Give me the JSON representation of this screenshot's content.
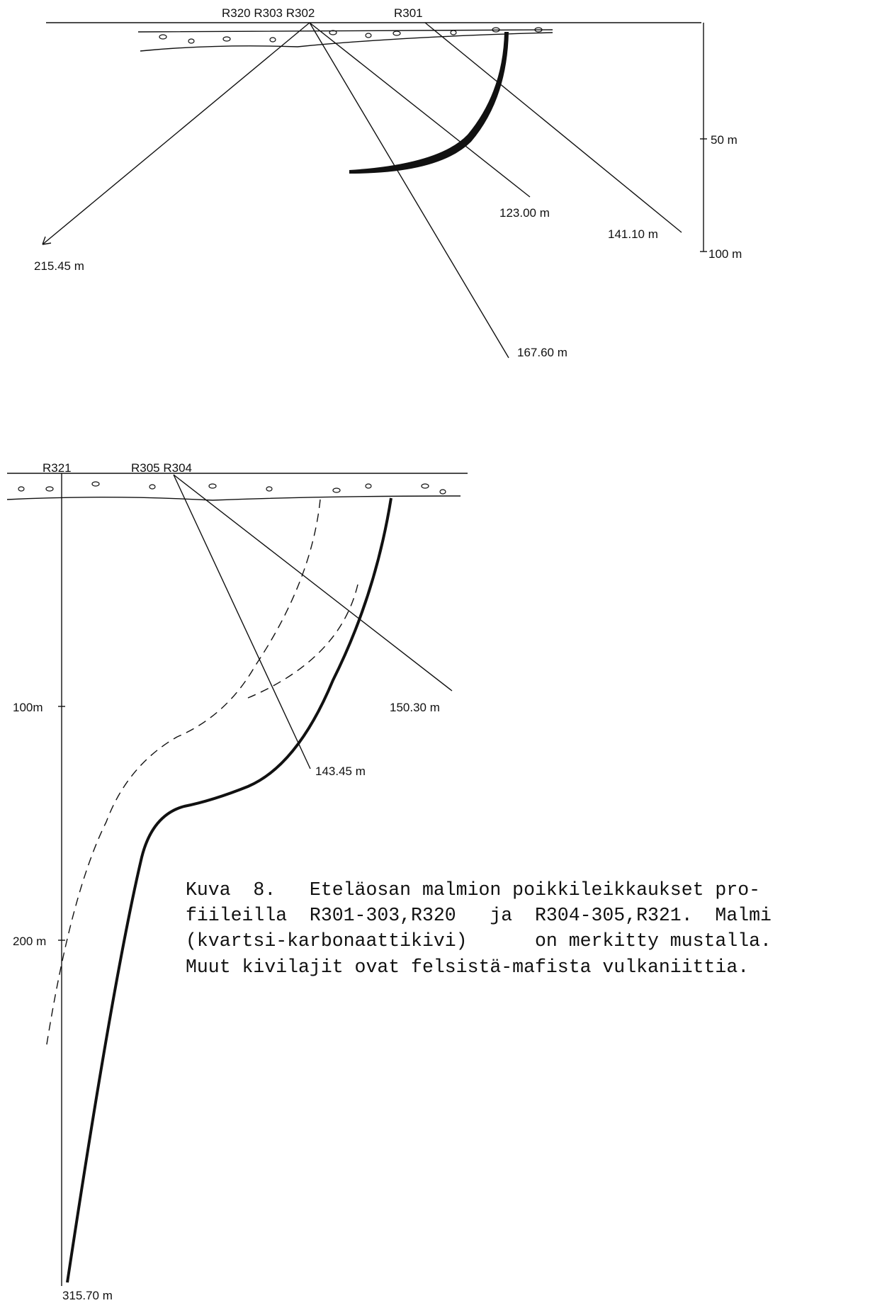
{
  "top": {
    "holes": [
      "R320 R303 R302",
      "R301"
    ],
    "depths": [
      "123.00 m",
      "141.10 m",
      "215.45 m",
      "167.60 m"
    ],
    "scale": [
      "50 m",
      "100 m"
    ]
  },
  "bottom": {
    "holes": [
      "R321",
      "R305 R304"
    ],
    "depths": [
      "150.30 m",
      "143.45 m",
      "315.70 m"
    ],
    "scale": [
      "100m",
      "200 m"
    ]
  },
  "caption": [
    "Kuva  8.   Eteläosan malmion poikkileikkaukset pro-",
    "fiileilla  R301-303,R320   ja  R304-305,R321.  Malmi",
    "(kvartsi-karbonaattikivi)      on merkitty mustalla.",
    "Muut kivilajit ovat felsistä-mafista vulkaniittia."
  ]
}
